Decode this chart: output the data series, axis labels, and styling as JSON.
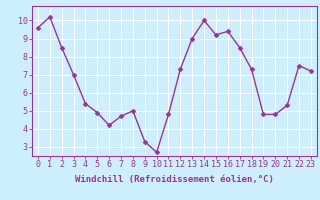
{
  "x": [
    0,
    1,
    2,
    3,
    4,
    5,
    6,
    7,
    8,
    9,
    10,
    11,
    12,
    13,
    14,
    15,
    16,
    17,
    18,
    19,
    20,
    21,
    22,
    23
  ],
  "y": [
    9.6,
    10.2,
    8.5,
    7.0,
    5.4,
    4.9,
    4.2,
    4.7,
    5.0,
    3.3,
    2.7,
    4.8,
    7.3,
    9.0,
    10.0,
    9.2,
    9.4,
    8.5,
    7.3,
    4.8,
    4.8,
    5.3,
    7.5,
    7.2
  ],
  "line_color": "#993399",
  "marker_color": "#993399",
  "bg_color": "#cceeff",
  "grid_color": "#ffffff",
  "xlabel": "Windchill (Refroidissement éolien,°C)",
  "ylim": [
    2.5,
    10.8
  ],
  "xlim": [
    -0.5,
    23.5
  ],
  "yticks": [
    3,
    4,
    5,
    6,
    7,
    8,
    9,
    10
  ],
  "xticks": [
    0,
    1,
    2,
    3,
    4,
    5,
    6,
    7,
    8,
    9,
    10,
    11,
    12,
    13,
    14,
    15,
    16,
    17,
    18,
    19,
    20,
    21,
    22,
    23
  ],
  "xlabel_fontsize": 6.5,
  "tick_fontsize": 6.0,
  "line_width": 1.0,
  "marker_size": 2.5
}
